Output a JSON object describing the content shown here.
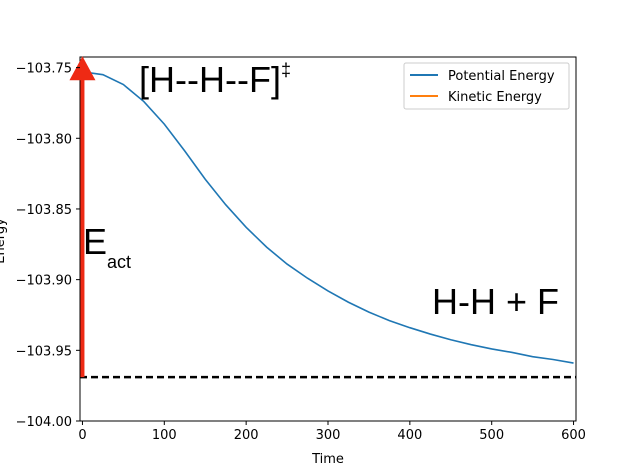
{
  "chart_data": {
    "type": "line",
    "xlabel": "Time",
    "ylabel": "Energy",
    "xlim": [
      -3,
      603
    ],
    "ylim": [
      -104.0,
      -103.7425
    ],
    "xticks": [
      0,
      100,
      200,
      300,
      400,
      500,
      600
    ],
    "xtick_labels": [
      "0",
      "100",
      "200",
      "300",
      "400",
      "500",
      "600"
    ],
    "yticks": [
      -103.75,
      -103.8,
      -103.85,
      -103.9,
      -103.95,
      -104.0
    ],
    "ytick_labels": [
      "−103.75",
      "−103.80",
      "−103.85",
      "−103.90",
      "−103.95",
      "−104.00"
    ],
    "grid": false,
    "legend_position": "top-right",
    "series": [
      {
        "name": "Potential Energy",
        "color": "#1f77b4",
        "x": [
          0,
          25,
          50,
          75,
          100,
          125,
          150,
          175,
          200,
          225,
          250,
          275,
          300,
          325,
          350,
          375,
          400,
          425,
          450,
          475,
          500,
          525,
          550,
          575,
          600
        ],
        "y": [
          -103.753,
          -103.755,
          -103.762,
          -103.774,
          -103.79,
          -103.809,
          -103.829,
          -103.847,
          -103.863,
          -103.877,
          -103.889,
          -103.899,
          -103.908,
          -103.916,
          -103.923,
          -103.929,
          -103.934,
          -103.9385,
          -103.9425,
          -103.946,
          -103.949,
          -103.9515,
          -103.9545,
          -103.9565,
          -103.959
        ]
      },
      {
        "name": "Kinetic Energy",
        "color": "#ff7f0e",
        "x": [],
        "y": []
      }
    ],
    "reference_line": {
      "y": -103.969,
      "style": "dashed",
      "color": "#000000"
    },
    "arrow": {
      "x": 0,
      "y_from": -103.969,
      "y_to": -103.749,
      "color": "#ee2a14"
    },
    "annotations": {
      "transition_state": "[H--H--F]",
      "transition_state_sup": "‡",
      "activation_main": "E",
      "activation_sub": "act",
      "products": "H-H + F"
    }
  }
}
